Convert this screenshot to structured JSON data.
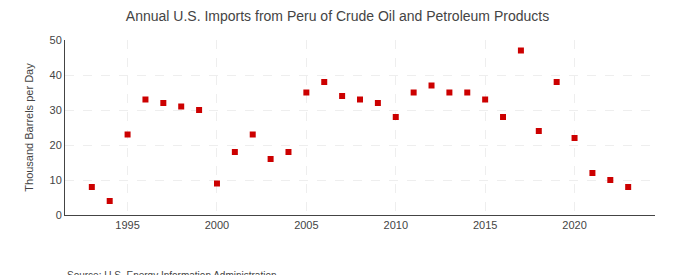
{
  "chart_data": {
    "type": "scatter",
    "title": "Annual U.S. Imports from Peru of Crude Oil and Petroleum Products",
    "ylabel": "Thousand Barrels per Day",
    "annotations": [
      "Source: U.S. Energy Information Administration"
    ],
    "x": [
      1993,
      1994,
      1995,
      1996,
      1997,
      1998,
      1999,
      2000,
      2001,
      2002,
      2003,
      2004,
      2005,
      2006,
      2007,
      2008,
      2009,
      2010,
      2011,
      2012,
      2013,
      2014,
      2015,
      2016,
      2017,
      2018,
      2019,
      2020,
      2021,
      2022,
      2023
    ],
    "values": [
      8,
      4,
      23,
      33,
      32,
      31,
      30,
      9,
      18,
      23,
      16,
      18,
      35,
      38,
      34,
      33,
      32,
      28,
      35,
      37,
      35,
      35,
      33,
      28,
      47,
      24,
      38,
      22,
      12,
      10,
      8
    ],
    "color": "#cc0000",
    "marker": "square",
    "xlim": [
      1991.5,
      2024.5
    ],
    "xticks": [
      1995,
      2000,
      2005,
      2010,
      2015,
      2020
    ],
    "ylim": [
      0,
      50
    ],
    "yticks": [
      0,
      10,
      20,
      30,
      40,
      50
    ],
    "grid": true
  }
}
